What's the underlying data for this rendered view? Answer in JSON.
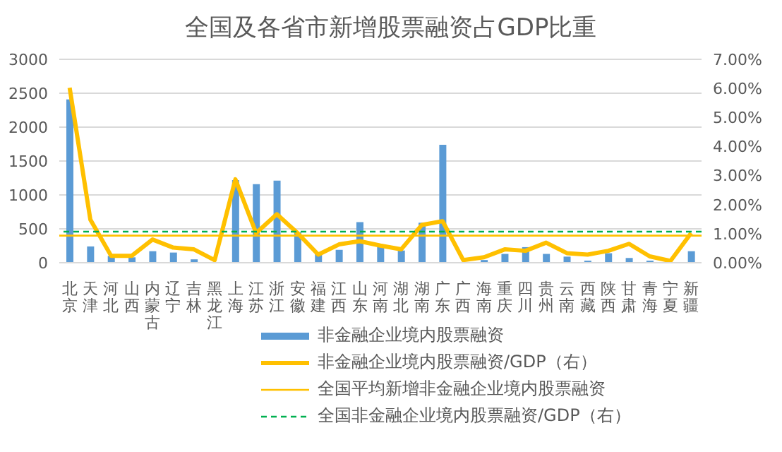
{
  "chart_data": {
    "type": "bar",
    "title": "全国及各省市新增股票融资占GDP比重",
    "categories": [
      "北京",
      "天津",
      "河北",
      "山西",
      "内蒙古",
      "辽宁",
      "吉林",
      "黑龙江",
      "上海",
      "江苏",
      "浙江",
      "安徽",
      "福建",
      "江西",
      "山东",
      "河南",
      "湖北",
      "湖南",
      "广东",
      "广西",
      "海南",
      "重庆",
      "四川",
      "贵州",
      "云南",
      "西藏",
      "陕西",
      "甘肃",
      "青海",
      "宁夏",
      "新疆"
    ],
    "series": [
      {
        "name": "非金融企业境内股票融资",
        "color": "#5b9bd5",
        "values": [
          2410,
          240,
          100,
          80,
          170,
          150,
          50,
          null,
          1220,
          1160,
          1210,
          450,
          130,
          190,
          600,
          250,
          180,
          590,
          1740,
          null,
          40,
          130,
          230,
          130,
          90,
          30,
          140,
          70,
          30,
          null,
          170
        ]
      },
      {
        "name": "非金融企业境内股票融资/GDP（右）",
        "type": "line",
        "axis": "y2",
        "color": "#ffc000",
        "values": [
          6.02,
          1.48,
          0.24,
          0.24,
          0.8,
          0.52,
          0.46,
          0.09,
          2.87,
          1.02,
          1.67,
          1.02,
          0.28,
          0.63,
          0.74,
          0.59,
          0.46,
          1.3,
          1.43,
          0.09,
          0.19,
          0.46,
          0.41,
          0.69,
          0.33,
          0.28,
          0.41,
          0.65,
          0.22,
          0.06,
          1.02
        ]
      }
    ],
    "ylim": [
      0,
      3000
    ],
    "yticks": [
      0,
      500,
      1000,
      1500,
      2000,
      2500,
      3000
    ],
    "y2lim": [
      0,
      7
    ],
    "y2ticks": [
      {
        "value": 0,
        "label": "0.00%"
      },
      {
        "value": 1,
        "label": "1.00%"
      },
      {
        "value": 2,
        "label": "2.00%"
      },
      {
        "value": 3,
        "label": "3.00%"
      },
      {
        "value": 4,
        "label": "4.00%"
      },
      {
        "value": 5,
        "label": "5.00%"
      },
      {
        "value": 6,
        "label": "6.00%"
      },
      {
        "value": 7,
        "label": "7.00%"
      }
    ],
    "ref_lines": [
      {
        "axis": "y",
        "value": 400,
        "label": "全国平均新增非金融企业境内股票融资",
        "color": "#ffc000",
        "line_style": "solid"
      },
      {
        "axis": "y2",
        "value": 1.07,
        "label": "全国非金融企业境内股票融资/GDP（右）",
        "color": "#00b050",
        "line_style": "dashed"
      }
    ],
    "grid": "y",
    "legend": "bottom",
    "marker": "none",
    "line_style": "solid"
  }
}
